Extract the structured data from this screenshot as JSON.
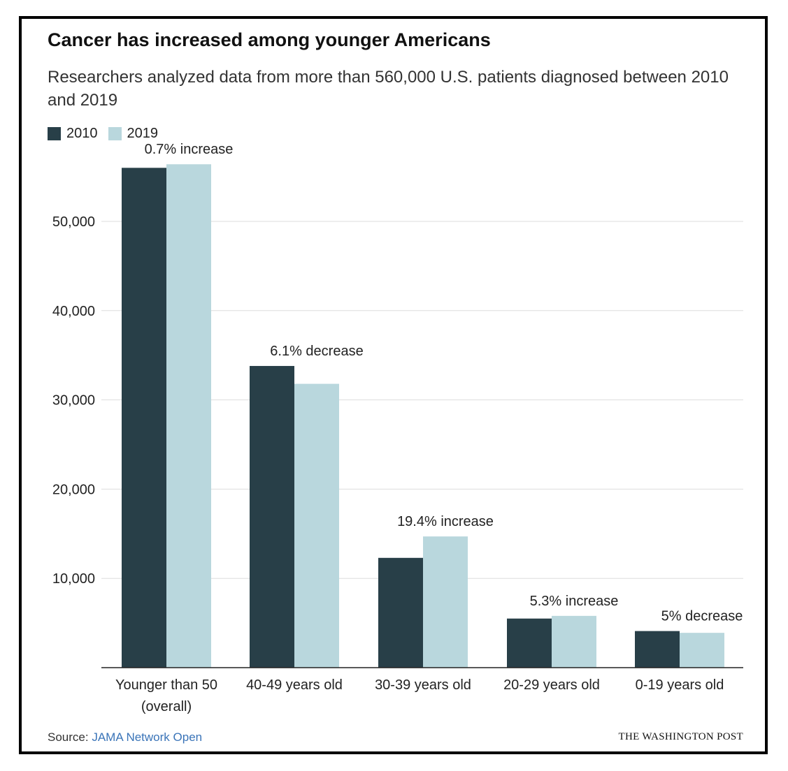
{
  "colors": {
    "series_2010": "#283f48",
    "series_2019": "#b9d7dd",
    "grid": "#dddddd",
    "axis": "#222222",
    "text": "#222222",
    "link": "#3a74b8"
  },
  "header": {
    "title": "Cancer has increased among younger Americans",
    "subtitle": "Researchers analyzed data from more than 560,000 U.S. patients diagnosed between 2010 and 2019"
  },
  "footer": {
    "source_label": "Source:",
    "source_name": "JAMA Network Open",
    "brand": "THE WASHINGTON POST"
  },
  "chart_data": {
    "type": "bar",
    "title": "Cancer has increased among younger Americans",
    "subtitle": "Researchers analyzed data from more than 560,000 U.S. patients diagnosed between 2010 and 2019",
    "categories": [
      [
        "Younger than 50",
        "(overall)"
      ],
      [
        "40-49 years old"
      ],
      [
        "30-39 years old"
      ],
      [
        "20-29 years old"
      ],
      [
        "0-19 years old"
      ]
    ],
    "series": [
      {
        "name": "2010",
        "color": "#283f48",
        "values": [
          56000,
          33800,
          12300,
          5500,
          4100
        ]
      },
      {
        "name": "2019",
        "color": "#b9d7dd",
        "values": [
          56400,
          31800,
          14700,
          5800,
          3900
        ]
      }
    ],
    "annotations": [
      "0.7% increase",
      "6.1% decrease",
      "19.4% increase",
      "5.3% increase",
      "5% decrease"
    ],
    "yticks": [
      10000,
      20000,
      30000,
      40000,
      50000
    ],
    "ytick_labels": [
      "10,000",
      "20,000",
      "30,000",
      "40,000",
      "50,000"
    ],
    "ylim": [
      0,
      60000
    ],
    "xlabel": "",
    "ylabel": "",
    "grid": true,
    "legend_position": "top-left"
  }
}
